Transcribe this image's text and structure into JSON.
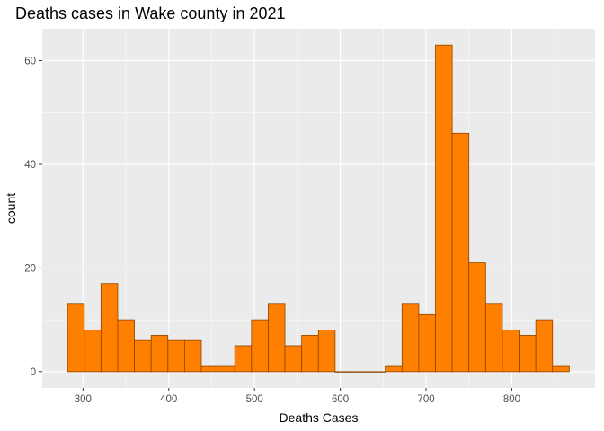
{
  "chart_data": {
    "type": "bar",
    "title": "Deaths cases in Wake county in 2021",
    "xlabel": "Deaths Cases",
    "ylabel": "count",
    "bin_width": 19.5,
    "bin_start": 282,
    "values": [
      13,
      8,
      17,
      10,
      6,
      7,
      6,
      6,
      1,
      1,
      5,
      10,
      13,
      5,
      7,
      8,
      0,
      0,
      0,
      1,
      13,
      11,
      63,
      46,
      21,
      13,
      8,
      7,
      10,
      1
    ],
    "xlim": [
      252.5,
      897
    ],
    "ylim": [
      -3.15,
      66.15
    ],
    "x_ticks": [
      300,
      400,
      500,
      600,
      700,
      800
    ],
    "y_ticks": [
      0,
      20,
      40,
      60
    ],
    "grid": true,
    "colors": {
      "panel_background": "#EBEBEB",
      "grid": "#FFFFFF",
      "bar_fill": "#FF8000",
      "bar_outline": "#8B4500",
      "tick_text": "#4D4D4D",
      "tick_mark": "#333333"
    }
  }
}
